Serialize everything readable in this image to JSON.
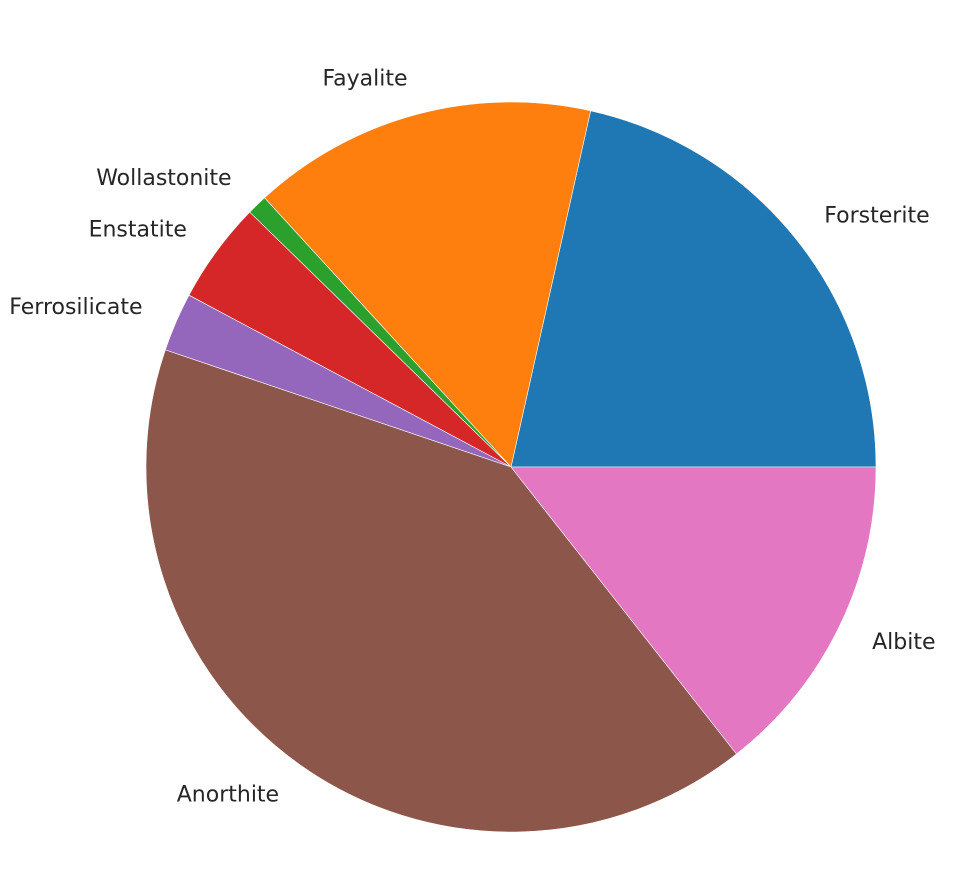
{
  "chart_data": {
    "type": "pie",
    "categories": [
      "Forsterite",
      "Fayalite",
      "Wollastonite",
      "Enstatite",
      "Ferrosilicate",
      "Anorthite",
      "Albite"
    ],
    "values": [
      21.5,
      15.3,
      0.9,
      4.5,
      2.6,
      40.8,
      14.4
    ],
    "colors": [
      "#1f77b4",
      "#ff7f0e",
      "#2ca02c",
      "#d62728",
      "#9467bd",
      "#8c564b",
      "#e377c2"
    ],
    "start_angle_deg": 0,
    "direction": "counterclockwise",
    "title": "",
    "legend": false
  }
}
